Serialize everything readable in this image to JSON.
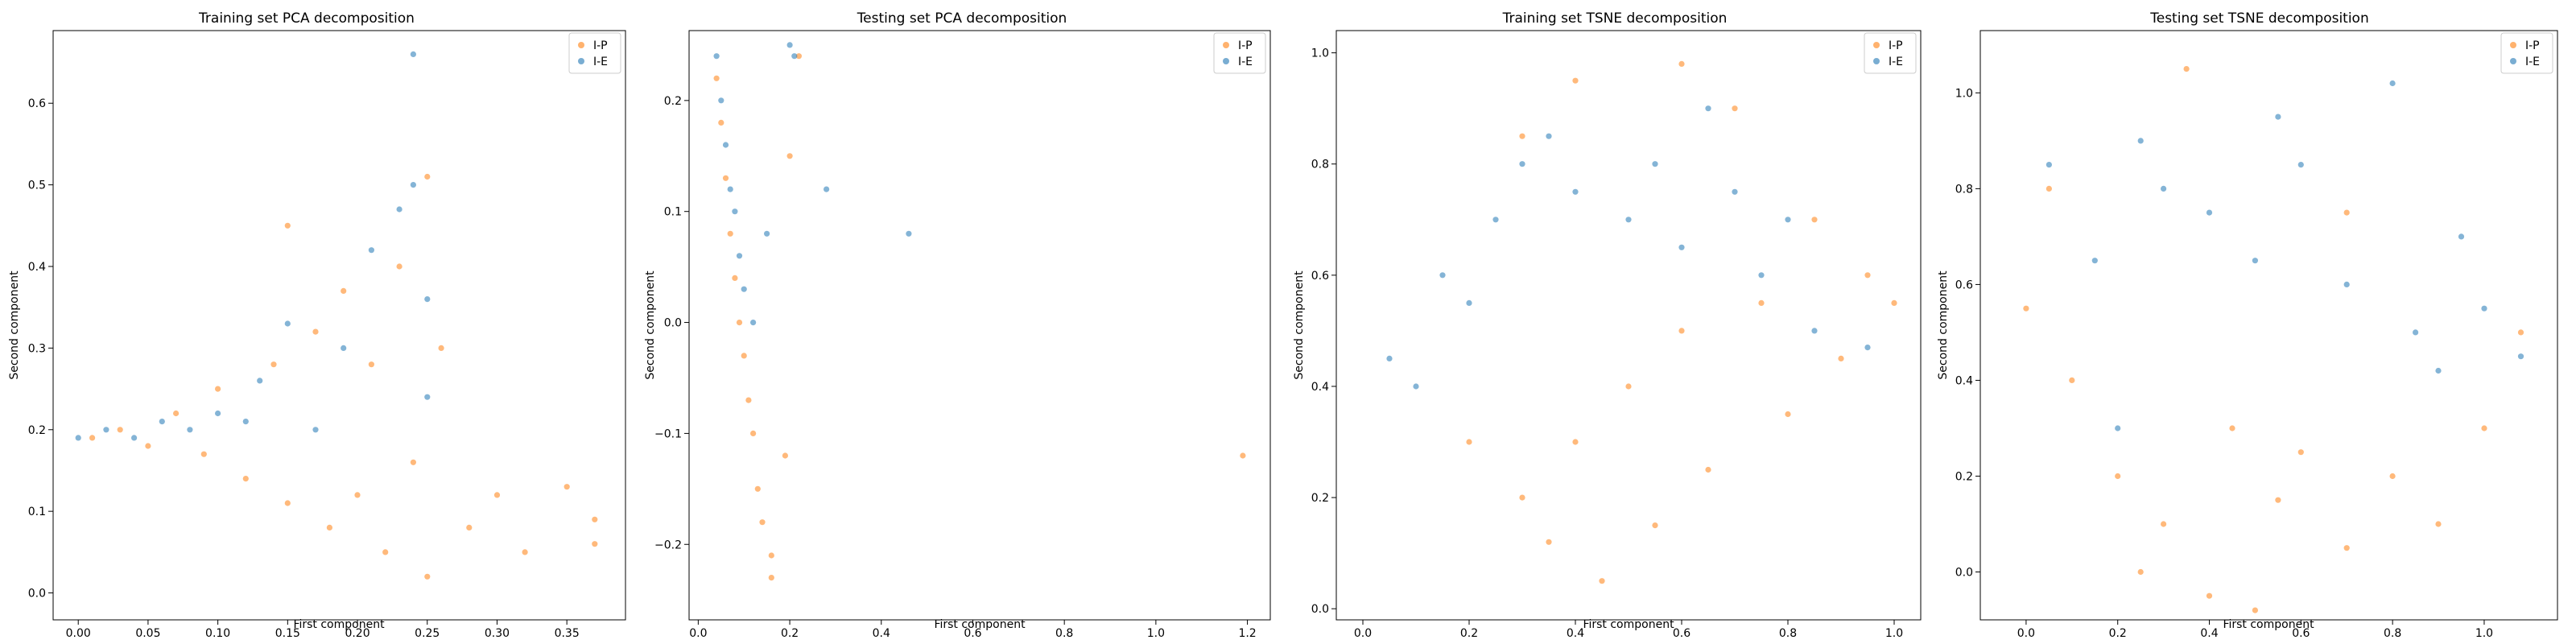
{
  "colors": {
    "series_ip": "#ff7f0e",
    "series_ie": "#1f77b4"
  },
  "chart_data": [
    {
      "type": "scatter",
      "title": "Training set PCA decomposition",
      "xlabel": "First component",
      "ylabel": "Second component",
      "xlim": [
        -0.018,
        0.392
      ],
      "ylim": [
        -0.033,
        0.689
      ],
      "xticks": [
        0.0,
        0.05,
        0.1,
        0.15,
        0.2,
        0.25,
        0.3,
        0.35
      ],
      "xticklabels": [
        "0.00",
        "0.05",
        "0.10",
        "0.15",
        "0.20",
        "0.25",
        "0.30",
        "0.35"
      ],
      "yticks": [
        0.0,
        0.1,
        0.2,
        0.3,
        0.4,
        0.5,
        0.6
      ],
      "yticklabels": [
        "0.0",
        "0.1",
        "0.2",
        "0.3",
        "0.4",
        "0.5",
        "0.6"
      ],
      "legend": [
        "I-P",
        "I-E"
      ],
      "legend_loc": "upper right",
      "series": [
        {
          "name": "I-P",
          "points": [
            [
              0.01,
              0.19
            ],
            [
              0.03,
              0.2
            ],
            [
              0.05,
              0.18
            ],
            [
              0.07,
              0.22
            ],
            [
              0.09,
              0.17
            ],
            [
              0.1,
              0.25
            ],
            [
              0.12,
              0.14
            ],
            [
              0.14,
              0.28
            ],
            [
              0.15,
              0.11
            ],
            [
              0.15,
              0.45
            ],
            [
              0.17,
              0.32
            ],
            [
              0.18,
              0.08
            ],
            [
              0.19,
              0.37
            ],
            [
              0.2,
              0.12
            ],
            [
              0.21,
              0.28
            ],
            [
              0.22,
              0.05
            ],
            [
              0.23,
              0.4
            ],
            [
              0.24,
              0.16
            ],
            [
              0.25,
              0.51
            ],
            [
              0.25,
              0.02
            ],
            [
              0.26,
              0.3
            ],
            [
              0.28,
              0.08
            ],
            [
              0.3,
              0.12
            ],
            [
              0.32,
              0.05
            ],
            [
              0.35,
              0.13
            ],
            [
              0.37,
              0.06
            ],
            [
              0.37,
              0.09
            ]
          ]
        },
        {
          "name": "I-E",
          "points": [
            [
              0.0,
              0.19
            ],
            [
              0.02,
              0.2
            ],
            [
              0.04,
              0.19
            ],
            [
              0.06,
              0.21
            ],
            [
              0.08,
              0.2
            ],
            [
              0.1,
              0.22
            ],
            [
              0.12,
              0.21
            ],
            [
              0.13,
              0.26
            ],
            [
              0.15,
              0.33
            ],
            [
              0.17,
              0.2
            ],
            [
              0.19,
              0.3
            ],
            [
              0.21,
              0.42
            ],
            [
              0.23,
              0.47
            ],
            [
              0.24,
              0.5
            ],
            [
              0.24,
              0.66
            ],
            [
              0.25,
              0.36
            ],
            [
              0.25,
              0.24
            ]
          ]
        }
      ]
    },
    {
      "type": "scatter",
      "title": "Testing set PCA decomposition",
      "xlabel": "First component",
      "ylabel": "Second component",
      "xlim": [
        -0.02,
        1.25
      ],
      "ylim": [
        -0.268,
        0.263
      ],
      "xticks": [
        0.0,
        0.2,
        0.4,
        0.6,
        0.8,
        1.0,
        1.2
      ],
      "xticklabels": [
        "0.0",
        "0.2",
        "0.4",
        "0.6",
        "0.8",
        "1.0",
        "1.2"
      ],
      "yticks": [
        -0.2,
        -0.1,
        0.0,
        0.1,
        0.2
      ],
      "yticklabels": [
        "−0.2",
        "−0.1",
        "0.0",
        "0.1",
        "0.2"
      ],
      "legend": [
        "I-P",
        "I-E"
      ],
      "legend_loc": "upper right",
      "series": [
        {
          "name": "I-P",
          "points": [
            [
              0.04,
              0.22
            ],
            [
              0.05,
              0.18
            ],
            [
              0.06,
              0.13
            ],
            [
              0.07,
              0.08
            ],
            [
              0.08,
              0.04
            ],
            [
              0.09,
              0.0
            ],
            [
              0.1,
              -0.03
            ],
            [
              0.11,
              -0.07
            ],
            [
              0.12,
              -0.1
            ],
            [
              0.13,
              -0.15
            ],
            [
              0.14,
              -0.18
            ],
            [
              0.16,
              -0.21
            ],
            [
              0.16,
              -0.23
            ],
            [
              0.19,
              -0.12
            ],
            [
              0.2,
              0.15
            ],
            [
              0.22,
              0.24
            ],
            [
              1.19,
              -0.12
            ]
          ]
        },
        {
          "name": "I-E",
          "points": [
            [
              0.04,
              0.24
            ],
            [
              0.05,
              0.2
            ],
            [
              0.06,
              0.16
            ],
            [
              0.07,
              0.12
            ],
            [
              0.08,
              0.1
            ],
            [
              0.09,
              0.06
            ],
            [
              0.1,
              0.03
            ],
            [
              0.12,
              0.0
            ],
            [
              0.15,
              0.08
            ],
            [
              0.2,
              0.25
            ],
            [
              0.21,
              0.24
            ],
            [
              0.28,
              0.12
            ],
            [
              0.46,
              0.08
            ]
          ]
        }
      ]
    },
    {
      "type": "scatter",
      "title": "Training set TSNE decomposition",
      "xlabel": "First component",
      "ylabel": "Second component",
      "xlim": [
        -0.05,
        1.05
      ],
      "ylim": [
        -0.02,
        1.04
      ],
      "xticks": [
        0.0,
        0.2,
        0.4,
        0.6,
        0.8,
        1.0
      ],
      "xticklabels": [
        "0.0",
        "0.2",
        "0.4",
        "0.6",
        "0.8",
        "1.0"
      ],
      "yticks": [
        0.0,
        0.2,
        0.4,
        0.6,
        0.8,
        1.0
      ],
      "yticklabels": [
        "0.0",
        "0.2",
        "0.4",
        "0.6",
        "0.8",
        "1.0"
      ],
      "legend": [
        "I-P",
        "I-E"
      ],
      "legend_loc": "upper right",
      "series": [
        {
          "name": "I-P",
          "points": [
            [
              0.2,
              0.3
            ],
            [
              0.3,
              0.2
            ],
            [
              0.35,
              0.12
            ],
            [
              0.4,
              0.3
            ],
            [
              0.45,
              0.05
            ],
            [
              0.5,
              0.4
            ],
            [
              0.55,
              0.15
            ],
            [
              0.6,
              0.5
            ],
            [
              0.65,
              0.25
            ],
            [
              0.7,
              0.9
            ],
            [
              0.75,
              0.55
            ],
            [
              0.8,
              0.35
            ],
            [
              0.85,
              0.7
            ],
            [
              0.9,
              0.45
            ],
            [
              0.95,
              0.6
            ],
            [
              1.0,
              0.55
            ],
            [
              0.3,
              0.85
            ],
            [
              0.4,
              0.95
            ],
            [
              0.6,
              0.98
            ]
          ]
        },
        {
          "name": "I-E",
          "points": [
            [
              0.05,
              0.45
            ],
            [
              0.1,
              0.4
            ],
            [
              0.15,
              0.6
            ],
            [
              0.2,
              0.55
            ],
            [
              0.25,
              0.7
            ],
            [
              0.3,
              0.8
            ],
            [
              0.35,
              0.85
            ],
            [
              0.4,
              0.75
            ],
            [
              0.5,
              0.7
            ],
            [
              0.55,
              0.8
            ],
            [
              0.6,
              0.65
            ],
            [
              0.65,
              0.9
            ],
            [
              0.7,
              0.75
            ],
            [
              0.75,
              0.6
            ],
            [
              0.8,
              0.7
            ],
            [
              0.85,
              0.5
            ],
            [
              0.95,
              0.47
            ]
          ]
        }
      ]
    },
    {
      "type": "scatter",
      "title": "Testing set TSNE decomposition",
      "xlabel": "First component",
      "ylabel": "Second component",
      "xlim": [
        -0.1,
        1.16
      ],
      "ylim": [
        -0.1,
        1.13
      ],
      "xticks": [
        0.0,
        0.2,
        0.4,
        0.6,
        0.8,
        1.0
      ],
      "xticklabels": [
        "0.0",
        "0.2",
        "0.4",
        "0.6",
        "0.8",
        "1.0"
      ],
      "yticks": [
        0.0,
        0.2,
        0.4,
        0.6,
        0.8,
        1.0
      ],
      "yticklabels": [
        "0.0",
        "0.2",
        "0.4",
        "0.6",
        "0.8",
        "1.0"
      ],
      "legend": [
        "I-P",
        "I-E"
      ],
      "legend_loc": "upper right",
      "series": [
        {
          "name": "I-P",
          "points": [
            [
              0.0,
              0.55
            ],
            [
              0.05,
              0.8
            ],
            [
              0.1,
              0.4
            ],
            [
              0.2,
              0.2
            ],
            [
              0.25,
              0.0
            ],
            [
              0.3,
              0.1
            ],
            [
              0.4,
              -0.05
            ],
            [
              0.45,
              0.3
            ],
            [
              0.5,
              -0.08
            ],
            [
              0.55,
              0.15
            ],
            [
              0.6,
              0.25
            ],
            [
              0.7,
              0.05
            ],
            [
              0.8,
              0.2
            ],
            [
              0.9,
              0.1
            ],
            [
              1.0,
              0.3
            ],
            [
              1.08,
              0.5
            ],
            [
              0.35,
              1.05
            ],
            [
              0.7,
              0.75
            ]
          ]
        },
        {
          "name": "I-E",
          "points": [
            [
              0.05,
              0.85
            ],
            [
              0.15,
              0.65
            ],
            [
              0.2,
              0.3
            ],
            [
              0.25,
              0.9
            ],
            [
              0.3,
              0.8
            ],
            [
              0.4,
              0.75
            ],
            [
              0.5,
              0.65
            ],
            [
              0.55,
              0.95
            ],
            [
              0.6,
              0.85
            ],
            [
              0.7,
              0.6
            ],
            [
              0.8,
              1.02
            ],
            [
              0.85,
              0.5
            ],
            [
              0.9,
              0.42
            ],
            [
              1.0,
              0.55
            ],
            [
              1.08,
              0.45
            ],
            [
              0.95,
              0.7
            ]
          ]
        }
      ]
    }
  ]
}
